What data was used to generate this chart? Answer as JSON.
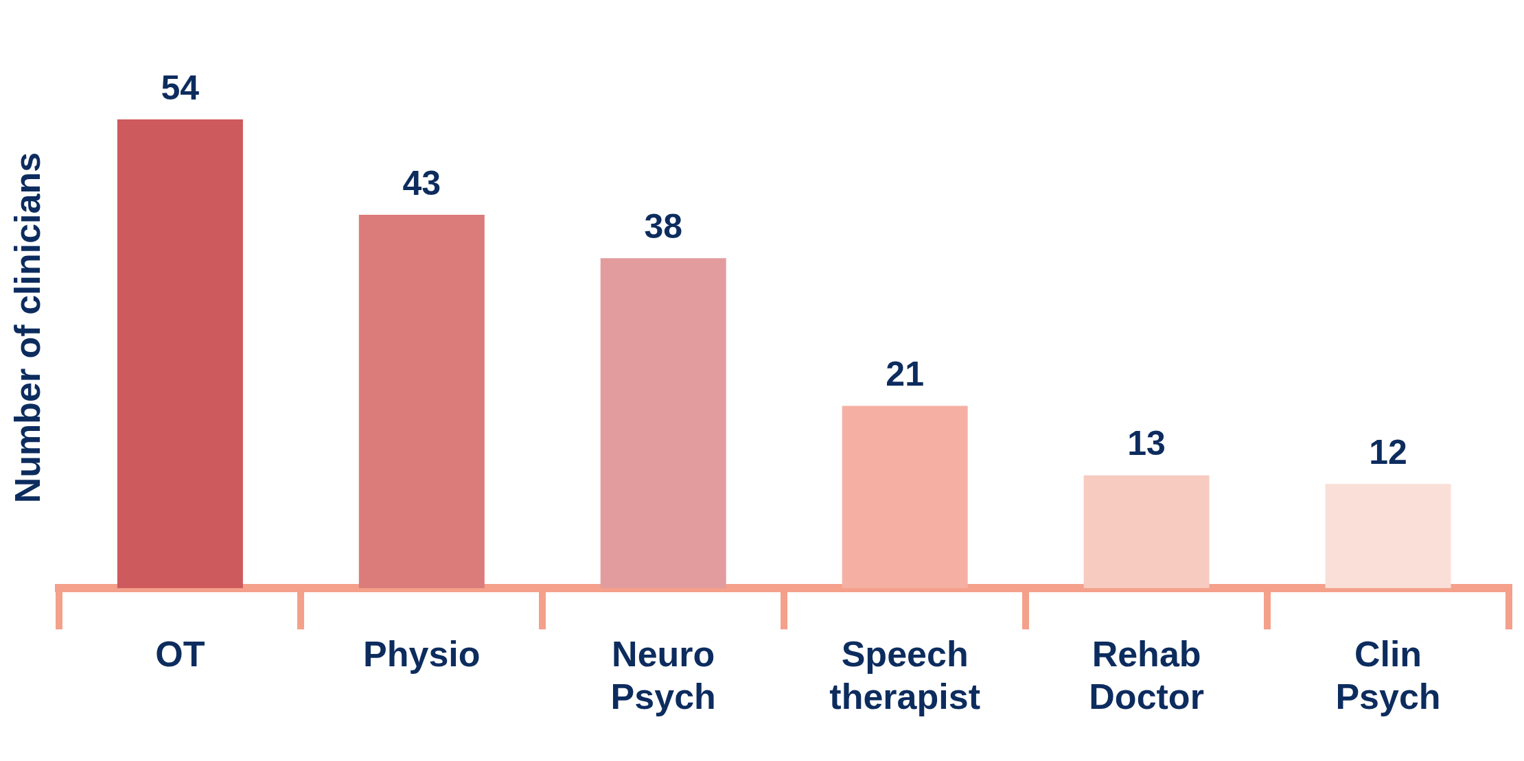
{
  "chart_data": {
    "type": "bar",
    "ylabel": "Number of clinicians",
    "categories": [
      "OT",
      "Physio",
      "Neuro Psych",
      "Speech therapist",
      "Rehab Doctor",
      "Clin Psych"
    ],
    "values": [
      54,
      43,
      38,
      21,
      13,
      12
    ],
    "colors": [
      "#cd5a5c",
      "#db7b7a",
      "#e39c9e",
      "#f5b0a3",
      "#f7cbc0",
      "#fadfd8"
    ],
    "data_labels": true,
    "grid": false,
    "legend": false
  }
}
